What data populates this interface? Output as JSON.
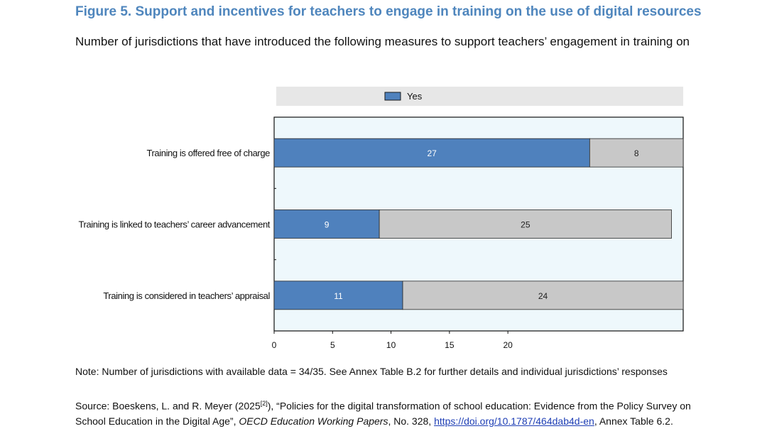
{
  "title": "Figure 5. Support and incentives for teachers to engage in training on the use of digital resources",
  "subtitle": "Number of jurisdictions that have introduced the following measures to support teachers’ engagement in training on",
  "colors": {
    "title": "#4f86bd",
    "yes": "#4f81bd",
    "no": "#c8c8c8",
    "plot_bg": "#eef8fc",
    "legend_bg": "#e7e7e7",
    "link": "#1f3fb5"
  },
  "chart_data": {
    "type": "bar",
    "orientation": "horizontal",
    "stacked": true,
    "categories": [
      "Training is offered free of charge",
      "Training is linked to teachers’ career advancement",
      "Training is considered in teachers’ appraisal"
    ],
    "series": [
      {
        "name": "Yes",
        "values": [
          27,
          9,
          11
        ]
      },
      {
        "values": [
          8,
          25,
          24
        ]
      }
    ],
    "xlim": [
      0,
      35
    ],
    "xticks": [
      0,
      5,
      10,
      15,
      20
    ],
    "legend": "top",
    "grid": false
  },
  "note": "Note: Number of jurisdictions with available data = 34/35. See Annex Table B.2 for further details and individual jurisdictions’ responses",
  "source": {
    "prefix": "Source: Boeskens, L. and R. Meyer (2025",
    "ref": "[2]",
    "mid": "), “Policies for the digital transformation of school education: Evidence from the Policy Survey on School Education in the Digital Age”, ",
    "publication": "OECD Education Working Papers",
    "number": ", No. 328, ",
    "link": "https://doi.org/10.1787/464dab4d-en",
    "suffix": ", Annex Table 6.2."
  }
}
